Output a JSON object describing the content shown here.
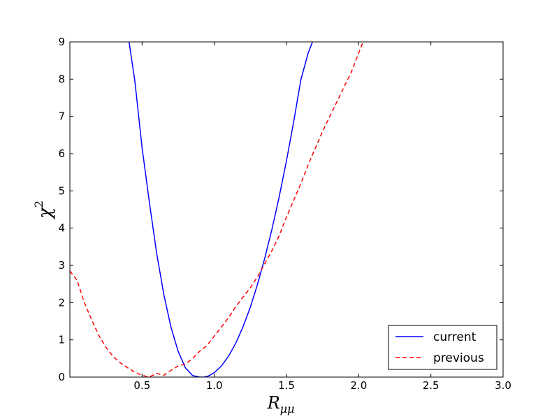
{
  "chart_data": {
    "type": "line",
    "xlabel": "R",
    "xlabel_sub": "μμ",
    "ylabel": "χ",
    "ylabel_sup": "2",
    "xlim": [
      0.0,
      3.0
    ],
    "ylim": [
      0,
      9
    ],
    "xticks": [
      0.5,
      1.0,
      1.5,
      2.0,
      2.5,
      3.0
    ],
    "xtick_labels": [
      "0.5",
      "1.0",
      "1.5",
      "2.0",
      "2.5",
      "3.0"
    ],
    "yticks": [
      0,
      1,
      2,
      3,
      4,
      5,
      6,
      7,
      8,
      9
    ],
    "ytick_labels": [
      "0",
      "1",
      "2",
      "3",
      "4",
      "5",
      "6",
      "7",
      "8",
      "9"
    ],
    "grid": false,
    "legend_position": "bottom-right",
    "series": [
      {
        "name": "current",
        "color": "#0000ff",
        "style": "solid",
        "x": [
          0.41,
          0.45,
          0.5,
          0.55,
          0.6,
          0.65,
          0.7,
          0.75,
          0.8,
          0.85,
          0.9,
          0.93,
          0.96,
          1.0,
          1.05,
          1.1,
          1.15,
          1.2,
          1.25,
          1.3,
          1.35,
          1.4,
          1.45,
          1.5,
          1.55,
          1.6,
          1.65,
          1.68
        ],
        "y": [
          9.0,
          7.95,
          6.16,
          4.71,
          3.35,
          2.23,
          1.34,
          0.69,
          0.25,
          0.04,
          0.0,
          0.0,
          0.03,
          0.12,
          0.3,
          0.57,
          0.92,
          1.36,
          1.88,
          2.5,
          3.2,
          3.98,
          4.85,
          5.81,
          6.86,
          7.99,
          8.7,
          9.0
        ]
      },
      {
        "name": "previous",
        "color": "#ff0000",
        "style": "dashed",
        "x": [
          0.0,
          0.05,
          0.1,
          0.15,
          0.2,
          0.25,
          0.3,
          0.35,
          0.4,
          0.45,
          0.5,
          0.55,
          0.6,
          0.65,
          0.7,
          0.75,
          0.8,
          0.85,
          0.9,
          0.95,
          1.0,
          1.05,
          1.1,
          1.15,
          1.2,
          1.25,
          1.3,
          1.35,
          1.4,
          1.45,
          1.5,
          1.55,
          1.6,
          1.65,
          1.7,
          1.75,
          1.8,
          1.85,
          1.9,
          1.95,
          2.0,
          2.03
        ],
        "y": [
          2.85,
          2.6,
          2.0,
          1.55,
          1.12,
          0.8,
          0.55,
          0.38,
          0.25,
          0.13,
          0.05,
          0.0,
          0.1,
          0.05,
          0.18,
          0.3,
          0.35,
          0.5,
          0.7,
          0.85,
          1.1,
          1.35,
          1.6,
          1.9,
          2.15,
          2.4,
          2.7,
          3.05,
          3.4,
          3.8,
          4.3,
          4.75,
          5.2,
          5.7,
          6.15,
          6.6,
          7.0,
          7.4,
          7.8,
          8.2,
          8.7,
          9.0
        ]
      }
    ]
  }
}
